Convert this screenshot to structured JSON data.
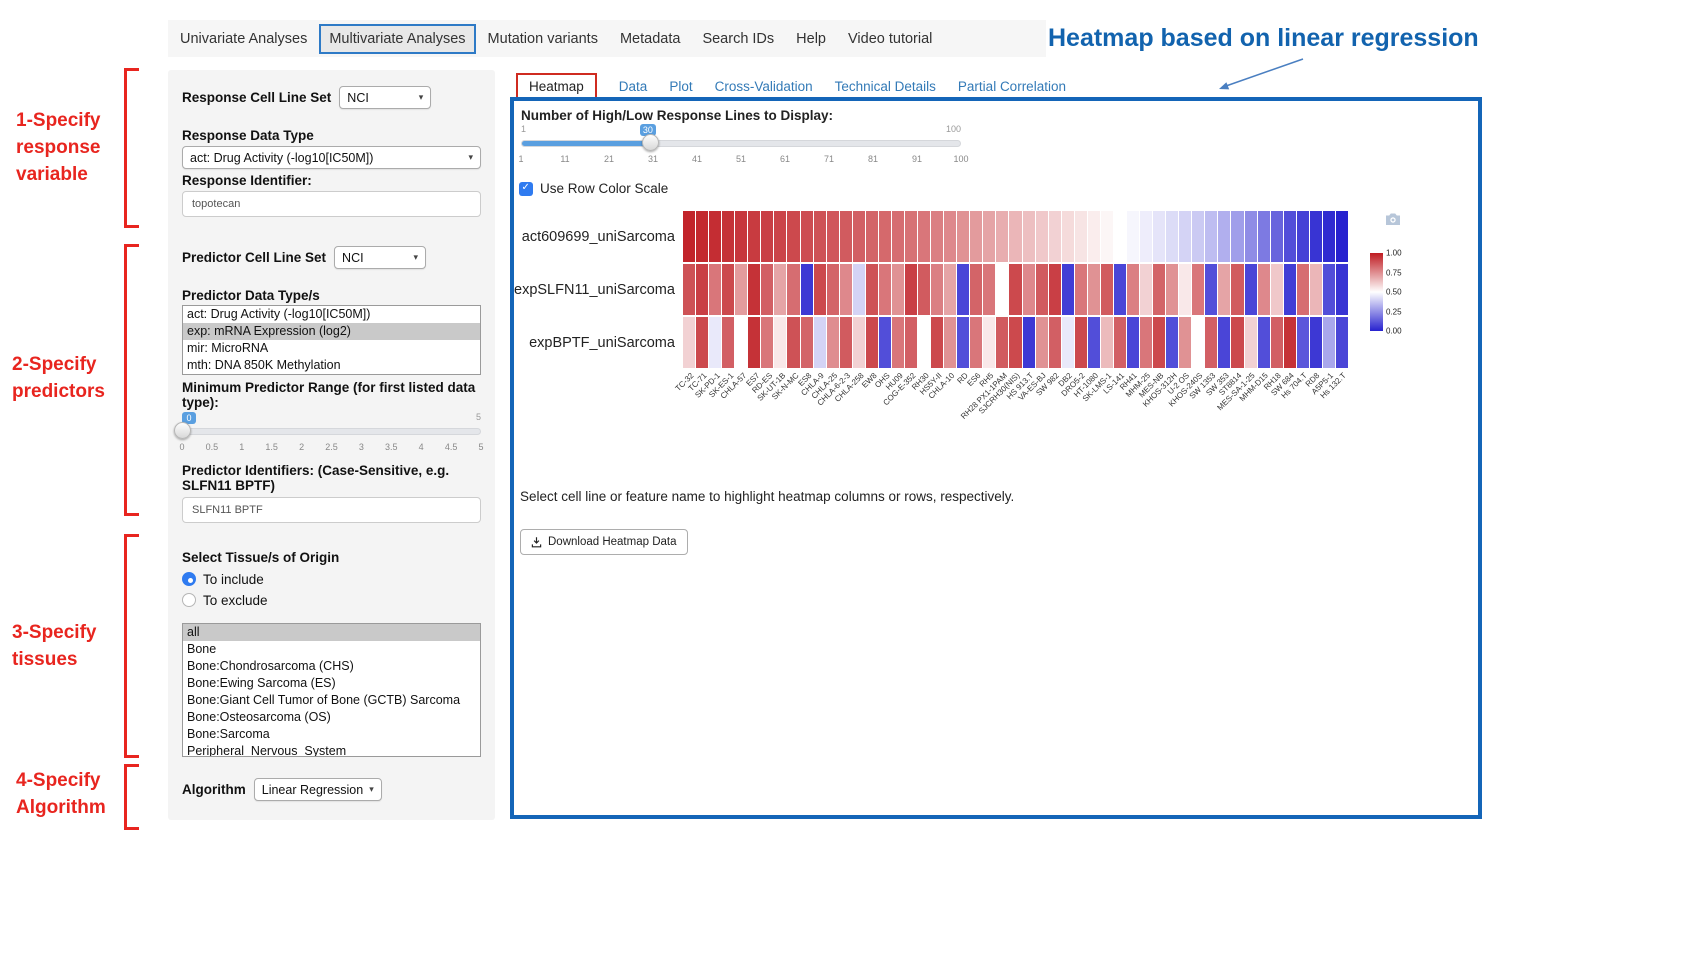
{
  "nav": {
    "items": [
      {
        "label": "Univariate Analyses",
        "active": false
      },
      {
        "label": "Multivariate Analyses",
        "active": true
      },
      {
        "label": "Mutation variants",
        "active": false
      },
      {
        "label": "Metadata",
        "active": false
      },
      {
        "label": "Search IDs",
        "active": false
      },
      {
        "label": "Help",
        "active": false
      },
      {
        "label": "Video tutorial",
        "active": false
      }
    ]
  },
  "annotations": {
    "heading": "Heatmap based on linear regression",
    "steps": [
      "1-Specify response variable",
      "2-Specify predictors",
      "3-Specify tissues",
      "4-Specify Algorithm"
    ]
  },
  "sidebar": {
    "response_cell_line_set": {
      "label": "Response Cell Line Set",
      "value": "NCI"
    },
    "response_data_type": {
      "label": "Response Data Type",
      "value": "act: Drug Activity (-log10[IC50M])"
    },
    "response_identifier": {
      "label": "Response Identifier:",
      "value": "topotecan"
    },
    "predictor_cell_line_set": {
      "label": "Predictor Cell Line Set",
      "value": "NCI"
    },
    "predictor_data_types": {
      "label": "Predictor Data Type/s",
      "options": [
        "act: Drug Activity (-log10[IC50M])",
        "exp: mRNA Expression (log2)",
        "mir: MicroRNA",
        "mth: DNA 850K Methylation"
      ],
      "selected": "exp: mRNA Expression (log2)"
    },
    "min_predictor_range": {
      "label": "Minimum Predictor Range (for first listed data type):",
      "min": 0,
      "max": 5,
      "value": 0,
      "max_label": "5",
      "ticks": [
        "0",
        "0.5",
        "1",
        "1.5",
        "2",
        "2.5",
        "3",
        "3.5",
        "4",
        "4.5",
        "5"
      ]
    },
    "predictor_identifiers": {
      "label": "Predictor Identifiers: (Case-Sensitive, e.g. SLFN11 BPTF)",
      "value": "SLFN11 BPTF"
    },
    "tissue": {
      "label": "Select Tissue/s of Origin",
      "include_label": "To include",
      "exclude_label": "To exclude",
      "mode": "To include",
      "options": [
        "all",
        "Bone",
        "Bone:Chondrosarcoma (CHS)",
        "Bone:Ewing Sarcoma (ES)",
        "Bone:Giant Cell Tumor of Bone (GCTB) Sarcoma",
        "Bone:Osteosarcoma (OS)",
        "Bone:Sarcoma",
        "Peripheral_Nervous_System"
      ],
      "selected": "all"
    },
    "algorithm": {
      "label": "Algorithm",
      "value": "Linear Regression"
    }
  },
  "main": {
    "tabs": [
      {
        "label": "Heatmap",
        "active": true
      },
      {
        "label": "Data",
        "active": false
      },
      {
        "label": "Plot",
        "active": false
      },
      {
        "label": "Cross-Validation",
        "active": false
      },
      {
        "label": "Technical Details",
        "active": false
      },
      {
        "label": "Partial Correlation",
        "active": false
      }
    ],
    "lines_slider": {
      "label": "Number of High/Low Response Lines to Display:",
      "min": 1,
      "max": 100,
      "value": 30,
      "min_label": "1",
      "max_label": "100",
      "ticks": [
        "1",
        "11",
        "21",
        "31",
        "41",
        "51",
        "61",
        "71",
        "81",
        "91",
        "100"
      ]
    },
    "row_color_scale": {
      "label": "Use Row Color Scale",
      "checked": true
    },
    "hint": "Select cell line or feature name to highlight heatmap columns or rows, respectively.",
    "download_button": "Download Heatmap Data"
  },
  "chart_data": {
    "type": "heatmap",
    "rows": [
      "act609699_uniSarcoma",
      "expSLFN11_uniSarcoma",
      "expBPTF_uniSarcoma"
    ],
    "columns": [
      "TC-32",
      "TC-71",
      "SK-PD-1",
      "SK-ES-1",
      "CHLA-57",
      "ES7",
      "RD-ES",
      "SK-UT-1B",
      "SK-N-MC",
      "ES8",
      "CHLA-9",
      "CHLA-25",
      "CHLA-6-2-3",
      "CHLA-258",
      "EW8",
      "OHS",
      "HU09",
      "COG-E-352",
      "RH30",
      "HS5Y-II",
      "CHLA-10",
      "RD",
      "ES6",
      "RH5",
      "RH28 PX1-1PAM",
      "SJCRH30(NIS)",
      "HS 913.T",
      "VA-ES-BJ",
      "SW 982",
      "DB2",
      "DRO5-2",
      "HT-1080",
      "SK-LMS-1",
      "LS-141",
      "RH41",
      "MHM-25",
      "MES-NB",
      "KHOS-312H",
      "U-2 OS",
      "KHOS-240S",
      "SW 1353",
      "SW 353",
      "ST8814",
      "MES-SA-1-25",
      "MHM-D15",
      "RH18",
      "SW 684",
      "Hs 704.T",
      "RD8",
      "A5P5-1",
      "Hs 132.T"
    ],
    "values": [
      [
        0.98,
        0.97,
        0.96,
        0.95,
        0.94,
        0.93,
        0.92,
        0.91,
        0.9,
        0.89,
        0.88,
        0.87,
        0.86,
        0.85,
        0.84,
        0.83,
        0.82,
        0.81,
        0.8,
        0.78,
        0.76,
        0.74,
        0.72,
        0.7,
        0.68,
        0.66,
        0.64,
        0.62,
        0.6,
        0.58,
        0.56,
        0.54,
        0.52,
        0.5,
        0.48,
        0.46,
        0.44,
        0.42,
        0.4,
        0.38,
        0.35,
        0.32,
        0.28,
        0.24,
        0.2,
        0.15,
        0.1,
        0.07,
        0.04,
        0.02,
        0.0
      ],
      [
        0.88,
        0.92,
        0.8,
        0.9,
        0.72,
        0.95,
        0.85,
        0.7,
        0.82,
        0.05,
        0.9,
        0.84,
        0.76,
        0.4,
        0.88,
        0.8,
        0.74,
        0.92,
        0.86,
        0.78,
        0.7,
        0.08,
        0.84,
        0.8,
        0.5,
        0.9,
        0.76,
        0.86,
        0.92,
        0.06,
        0.8,
        0.74,
        0.86,
        0.08,
        0.78,
        0.6,
        0.84,
        0.74,
        0.55,
        0.8,
        0.1,
        0.7,
        0.86,
        0.08,
        0.76,
        0.62,
        0.06,
        0.82,
        0.66,
        0.1,
        0.04
      ],
      [
        0.6,
        0.9,
        0.45,
        0.85,
        0.5,
        0.95,
        0.8,
        0.55,
        0.88,
        0.84,
        0.4,
        0.75,
        0.86,
        0.6,
        0.9,
        0.1,
        0.8,
        0.85,
        0.5,
        0.9,
        0.74,
        0.1,
        0.8,
        0.55,
        0.86,
        0.9,
        0.05,
        0.74,
        0.85,
        0.45,
        0.9,
        0.1,
        0.65,
        0.85,
        0.08,
        0.8,
        0.9,
        0.1,
        0.74,
        0.5,
        0.85,
        0.08,
        0.9,
        0.6,
        0.1,
        0.85,
        0.95,
        0.12,
        0.05,
        0.3,
        0.08
      ]
    ],
    "colorscale": {
      "high_color": "#bf1b21",
      "mid_color": "#ffffff",
      "low_color": "#2722cf",
      "range": [
        0,
        1
      ],
      "ticks": [
        "1.00",
        "0.75",
        "0.50",
        "0.25",
        "0.00"
      ]
    },
    "legend_position": "right"
  }
}
